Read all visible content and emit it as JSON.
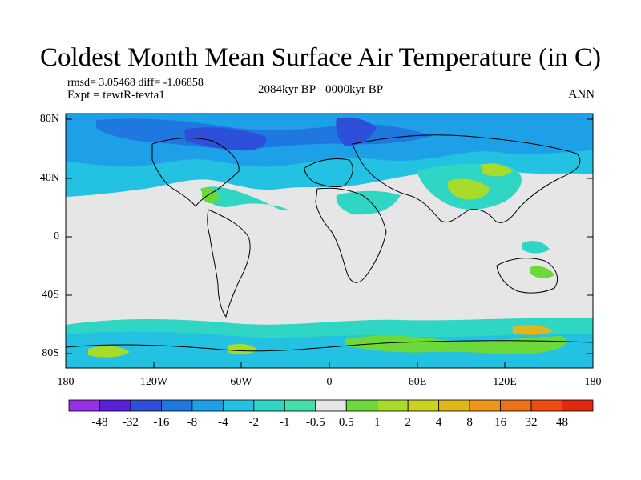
{
  "title": "Coldest Month Mean Surface Air Temperature (in C)",
  "stats": "rmsd= 3.05468 diff= -1.06858",
  "experiment": "Expt = tewtR-tevta1",
  "period": "2084kyr BP - 0000kyr BP",
  "season": "ANN",
  "lat_labels": [
    "80N",
    "40N",
    "0",
    "40S",
    "80S"
  ],
  "lon_labels": [
    "180",
    "120W",
    "60W",
    "0",
    "60E",
    "120E",
    "180"
  ],
  "colorbar": {
    "labels": [
      "-48",
      "-32",
      "-16",
      "-8",
      "-4",
      "-2",
      "-1",
      "-0.5",
      "0.5",
      "1",
      "2",
      "4",
      "8",
      "16",
      "32",
      "48"
    ],
    "colors": [
      "#9a30e6",
      "#5a1ed8",
      "#2e4fd9",
      "#1e78e0",
      "#1ea0e8",
      "#23c2e2",
      "#30d6c4",
      "#42e0a8",
      "#e6e6e6",
      "#6cd83a",
      "#a8dc28",
      "#c8d420",
      "#e0b61a",
      "#ee9618",
      "#f07018",
      "#ee4a14",
      "#e02a10"
    ]
  },
  "field_colors": {
    "neutral": "#e6e6e6",
    "cool_1": "#30d6c4",
    "cool_2": "#23c2e2",
    "cool_3": "#1ea0e8",
    "cold": "#1e78e0",
    "very_cold": "#2e4fd9",
    "warm_1": "#6cd83a",
    "warm_2": "#a8dc28",
    "warm_3": "#e0b61a"
  }
}
